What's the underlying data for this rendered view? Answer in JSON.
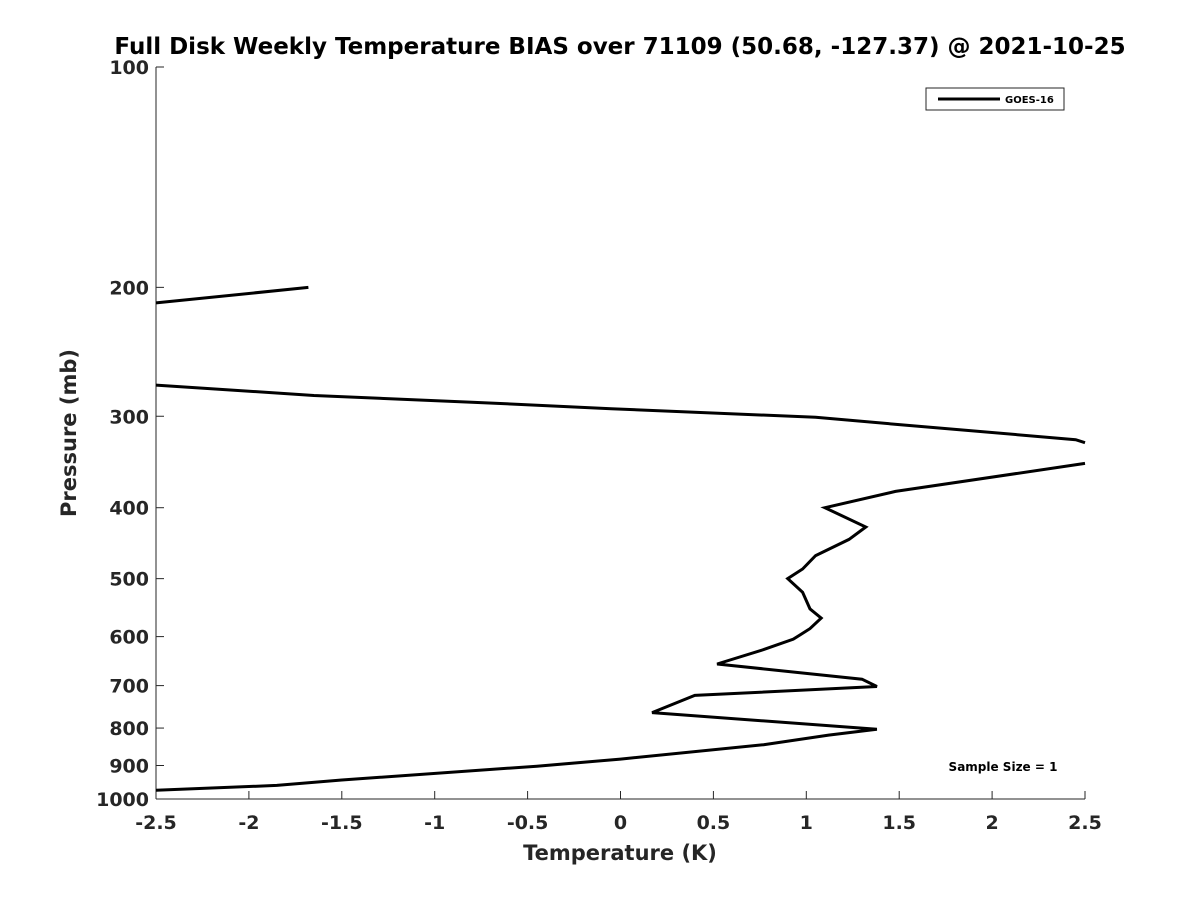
{
  "chart_data": {
    "type": "line",
    "title": "Full Disk Weekly Temperature BIAS over 71109 (50.68, -127.37) @ 2021-10-25",
    "xlabel": "Temperature (K)",
    "ylabel": "Pressure (mb)",
    "xlim": [
      -2.5,
      2.5
    ],
    "ylim": [
      100,
      1000
    ],
    "yscale": "log",
    "y_reversed": true,
    "x_ticks": [
      "-2.5",
      "-2",
      "-1.5",
      "-1",
      "-0.5",
      "0",
      "0.5",
      "1",
      "1.5",
      "2",
      "2.5"
    ],
    "y_ticks": [
      "100",
      "200",
      "300",
      "400",
      "500",
      "600",
      "700",
      "800",
      "900",
      "1000"
    ],
    "grid": false,
    "legend": {
      "placement": "top-right",
      "entries": [
        "GOES-16"
      ]
    },
    "annotation": "Sample Size = 1",
    "series": [
      {
        "name": "GOES-16",
        "color": "#000000",
        "segments": [
          [
            {
              "x": -1.68,
              "p": 200
            },
            {
              "x": -2.5,
              "p": 210
            }
          ],
          [
            {
              "x": -2.5,
              "p": 272
            },
            {
              "x": -1.65,
              "p": 281
            },
            {
              "x": -0.8,
              "p": 287
            },
            {
              "x": -0.05,
              "p": 293
            },
            {
              "x": 1.05,
              "p": 301
            },
            {
              "x": 1.5,
              "p": 308
            },
            {
              "x": 2.45,
              "p": 323
            },
            {
              "x": 2.5,
              "p": 326
            }
          ],
          [
            {
              "x": 2.5,
              "p": 348
            },
            {
              "x": 1.48,
              "p": 380
            },
            {
              "x": 1.1,
              "p": 400
            },
            {
              "x": 1.32,
              "p": 425
            },
            {
              "x": 1.23,
              "p": 442
            },
            {
              "x": 1.05,
              "p": 465
            },
            {
              "x": 0.98,
              "p": 485
            },
            {
              "x": 0.9,
              "p": 500
            },
            {
              "x": 0.98,
              "p": 522
            },
            {
              "x": 1.02,
              "p": 550
            },
            {
              "x": 1.08,
              "p": 566
            },
            {
              "x": 1.02,
              "p": 585
            },
            {
              "x": 0.93,
              "p": 605
            },
            {
              "x": 0.77,
              "p": 625
            },
            {
              "x": 0.52,
              "p": 654
            },
            {
              "x": 1.3,
              "p": 686
            },
            {
              "x": 1.38,
              "p": 702
            },
            {
              "x": 0.4,
              "p": 722
            },
            {
              "x": 0.17,
              "p": 762
            },
            {
              "x": 1.38,
              "p": 803
            },
            {
              "x": 1.12,
              "p": 818
            },
            {
              "x": 0.77,
              "p": 843
            },
            {
              "x": 0,
              "p": 882
            },
            {
              "x": -0.45,
              "p": 902
            },
            {
              "x": -1.5,
              "p": 942
            },
            {
              "x": -1.85,
              "p": 958
            },
            {
              "x": -2.5,
              "p": 973
            }
          ]
        ]
      }
    ]
  }
}
